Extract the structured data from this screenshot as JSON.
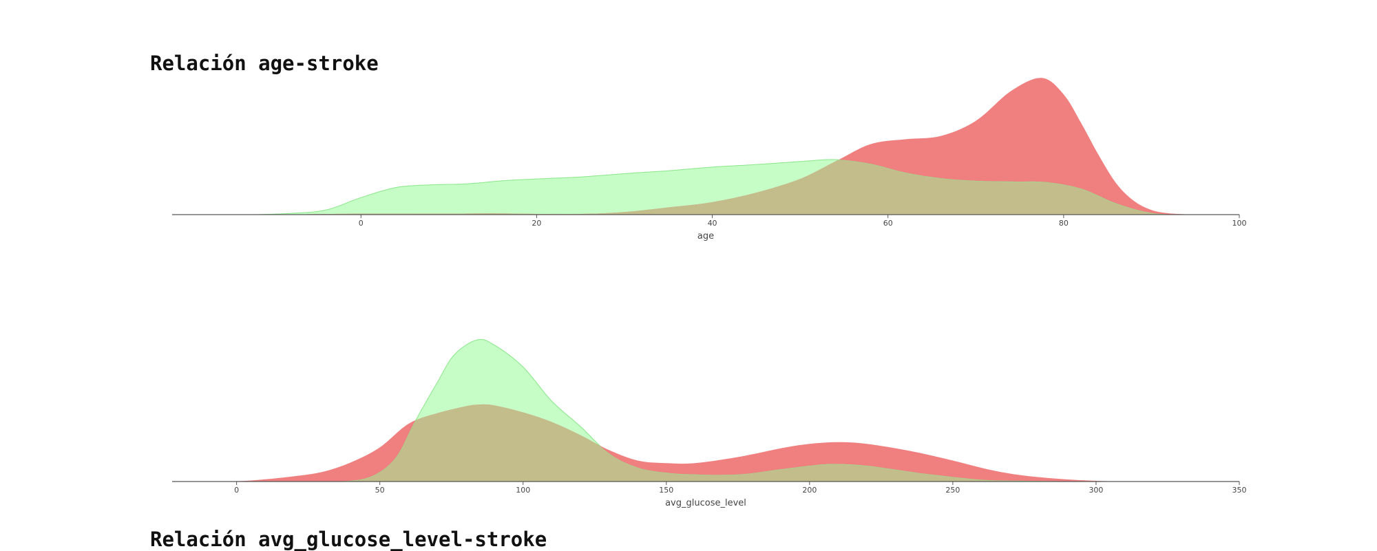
{
  "colors": {
    "stroke_series": "#f08080",
    "no_stroke_series": "#c6fcc6",
    "no_stroke_outline": "#8fe88f",
    "overlap": "#c2bd8a",
    "axis": "#555555"
  },
  "chart_data": [
    {
      "type": "area",
      "title": "Relación age-stroke",
      "xlabel": "age",
      "ylabel": "",
      "xlim": [
        -21.5,
        100
      ],
      "ylim": [
        0,
        0.0445
      ],
      "xticks": [
        0,
        20,
        40,
        60,
        80,
        100
      ],
      "grid": false,
      "legend": "none",
      "series": [
        {
          "color": "#c6fcc6",
          "x": [
            -12,
            -8,
            -4,
            0,
            4,
            8,
            12,
            16,
            20,
            25,
            30,
            35,
            40,
            45,
            50,
            54,
            58,
            62,
            66,
            70,
            74,
            78,
            82,
            86,
            90,
            94
          ],
          "values": [
            0.0,
            0.0004,
            0.0014,
            0.0052,
            0.0083,
            0.0091,
            0.0094,
            0.0103,
            0.0109,
            0.0115,
            0.0125,
            0.0134,
            0.0145,
            0.0153,
            0.0162,
            0.0168,
            0.0155,
            0.0128,
            0.0111,
            0.0103,
            0.0101,
            0.0099,
            0.0079,
            0.0034,
            0.0005,
            0.0
          ]
        },
        {
          "color": "#f08080",
          "x": [
            -10,
            0,
            10,
            15,
            20,
            25,
            30,
            35,
            40,
            45,
            50,
            54,
            58,
            62,
            66,
            70,
            74,
            77.5,
            80,
            82,
            84,
            86,
            88,
            90,
            92,
            95
          ],
          "values": [
            0.0,
            0.0003,
            0.0003,
            0.0004,
            0.0002,
            0.0002,
            0.0008,
            0.0022,
            0.0038,
            0.0067,
            0.0109,
            0.0162,
            0.0215,
            0.023,
            0.024,
            0.0286,
            0.0377,
            0.0417,
            0.0367,
            0.0279,
            0.0181,
            0.0095,
            0.0042,
            0.0014,
            0.0004,
            0.0
          ]
        }
      ]
    },
    {
      "type": "area",
      "title": "Relación avg_glucose_level-stroke",
      "xlabel": "avg_glucose_level",
      "ylabel": "",
      "xlim": [
        -22.5,
        350
      ],
      "ylim": [
        0,
        0.0162
      ],
      "xticks": [
        0,
        50,
        100,
        150,
        200,
        250,
        300,
        350
      ],
      "grid": false,
      "legend": "none",
      "series": [
        {
          "color": "#c6fcc6",
          "x": [
            30,
            45,
            55,
            62,
            70,
            76,
            84,
            90,
            100,
            110,
            120,
            130,
            140,
            150,
            160,
            175,
            190,
            200,
            208,
            220,
            240,
            260,
            275,
            290,
            300
          ],
          "values": [
            0.0,
            0.00035,
            0.0025,
            0.0067,
            0.0113,
            0.0145,
            0.0162,
            0.0156,
            0.0131,
            0.0092,
            0.0063,
            0.0032,
            0.0016,
            0.001,
            0.0008,
            0.0008,
            0.0014,
            0.0018,
            0.002,
            0.0018,
            0.0009,
            0.0002,
            8e-05,
            3e-05,
            0.0
          ]
        },
        {
          "color": "#f08080",
          "x": [
            -10,
            0,
            10,
            20,
            30,
            40,
            50,
            60,
            70,
            80,
            85,
            90,
            100,
            110,
            120,
            130,
            140,
            150,
            160,
            175,
            190,
            200,
            210,
            220,
            235,
            250,
            265,
            280,
            300,
            320,
            345
          ],
          "values": [
            0.0,
            4e-05,
            0.00025,
            0.0006,
            0.0011,
            0.0022,
            0.0039,
            0.0066,
            0.0078,
            0.0086,
            0.0088,
            0.0087,
            0.0079,
            0.0068,
            0.0053,
            0.0036,
            0.0024,
            0.0021,
            0.0021,
            0.0028,
            0.0038,
            0.0043,
            0.0045,
            0.0043,
            0.0035,
            0.0024,
            0.0012,
            0.0005,
            8e-05,
            2e-05,
            0.0
          ]
        }
      ]
    }
  ]
}
